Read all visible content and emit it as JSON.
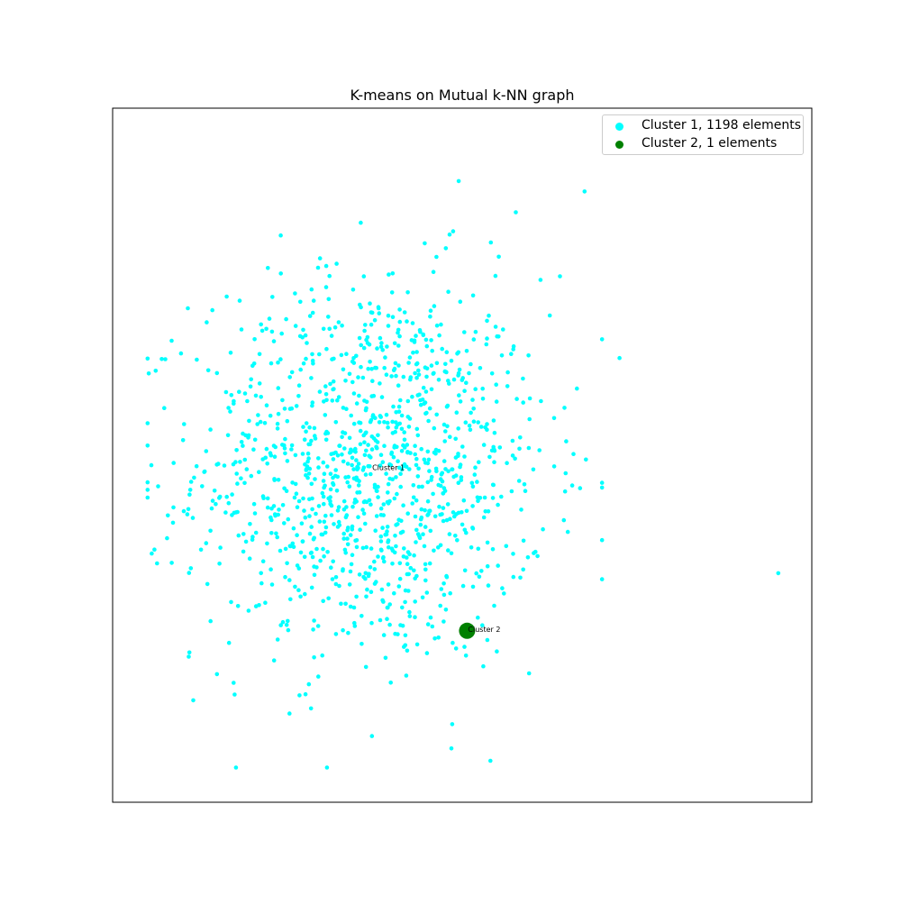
{
  "chart_data": {
    "type": "scatter",
    "title": "K-means on Mutual k-NN graph",
    "xlabel": "",
    "ylabel": "",
    "xlim": [
      0,
      100
    ],
    "ylim": [
      0,
      100
    ],
    "grid": false,
    "axes_ticks": false,
    "legend_placement": "upper-right",
    "series": [
      {
        "name": "Cluster 1, 1198 elements",
        "color": "#00ffff",
        "count": 1198,
        "centroid": [
          37,
          48
        ],
        "spread": [
          12.5,
          14
        ],
        "outliers": [
          [
            49.5,
            89.5
          ],
          [
            67.5,
            88
          ],
          [
            72.5,
            64
          ],
          [
            54.5,
            55
          ],
          [
            95.2,
            33
          ]
        ],
        "annotation": {
          "text": "Cluster 1",
          "x": 37,
          "y": 48
        }
      },
      {
        "name": "Cluster 2, 1 elements",
        "color": "#008000",
        "count": 1,
        "points": [
          [
            50.7,
            24.7
          ]
        ],
        "annotation": {
          "text": "Cluster 2",
          "x": 50.7,
          "y": 24.7
        }
      }
    ]
  }
}
